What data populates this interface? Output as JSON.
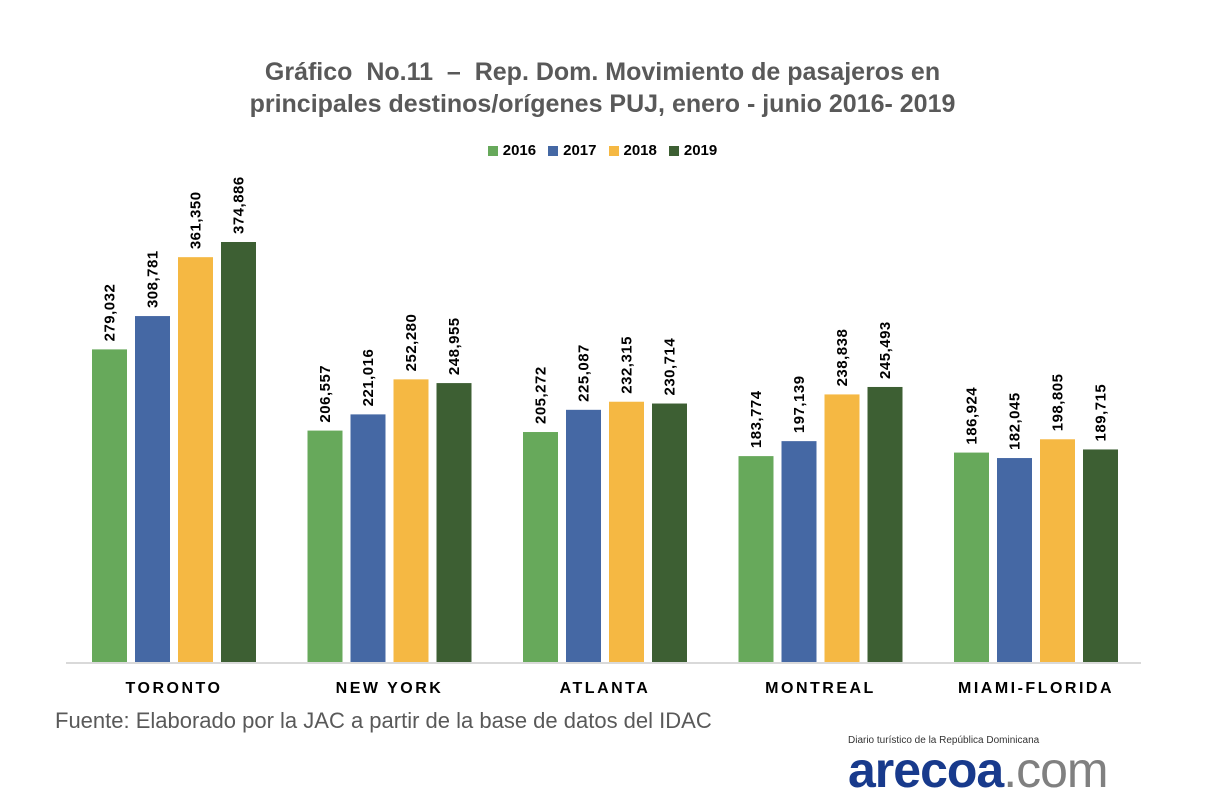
{
  "chart_data": {
    "type": "bar",
    "title": [
      "Gráfico  No.11  –  Rep. Dom. Movimiento de pasajeros en",
      "principales destinos/orígenes PUJ, enero - junio 2016- 2019"
    ],
    "categories": [
      "TORONTO",
      "NEW YORK",
      "ATLANTA",
      "MONTREAL",
      "MIAMI-FLORIDA"
    ],
    "series": [
      {
        "name": "2016",
        "color": "#67A95B",
        "values": [
          279032,
          206557,
          205272,
          183774,
          186924
        ],
        "labels": [
          "279,032",
          "206,557",
          "205,272",
          "183,774",
          "186,924"
        ]
      },
      {
        "name": "2017",
        "color": "#4568A4",
        "values": [
          308781,
          221016,
          225087,
          197139,
          182045
        ],
        "labels": [
          "308,781",
          "221,016",
          "225,087",
          "197,139",
          "182,045"
        ]
      },
      {
        "name": "2018",
        "color": "#F5B843",
        "values": [
          361350,
          252280,
          232315,
          238838,
          198805
        ],
        "labels": [
          "361,350",
          "252,280",
          "232,315",
          "238,838",
          "198,805"
        ]
      },
      {
        "name": "2019",
        "color": "#3D5F33",
        "values": [
          374886,
          248955,
          230714,
          245493,
          189715
        ],
        "labels": [
          "374,886",
          "248,955",
          "230,714",
          "245,493",
          "189,715"
        ]
      }
    ],
    "xlabel": "",
    "ylabel": "",
    "ylim": [
      0,
      400000
    ],
    "grid": false,
    "legend": "top"
  },
  "source": "Fuente: Elaborado por la JAC a partir de la base de datos del IDAC",
  "logo": {
    "tagline": "Diario turístico de la República Dominicana",
    "brand": "arecoa",
    "tld": ".com"
  }
}
